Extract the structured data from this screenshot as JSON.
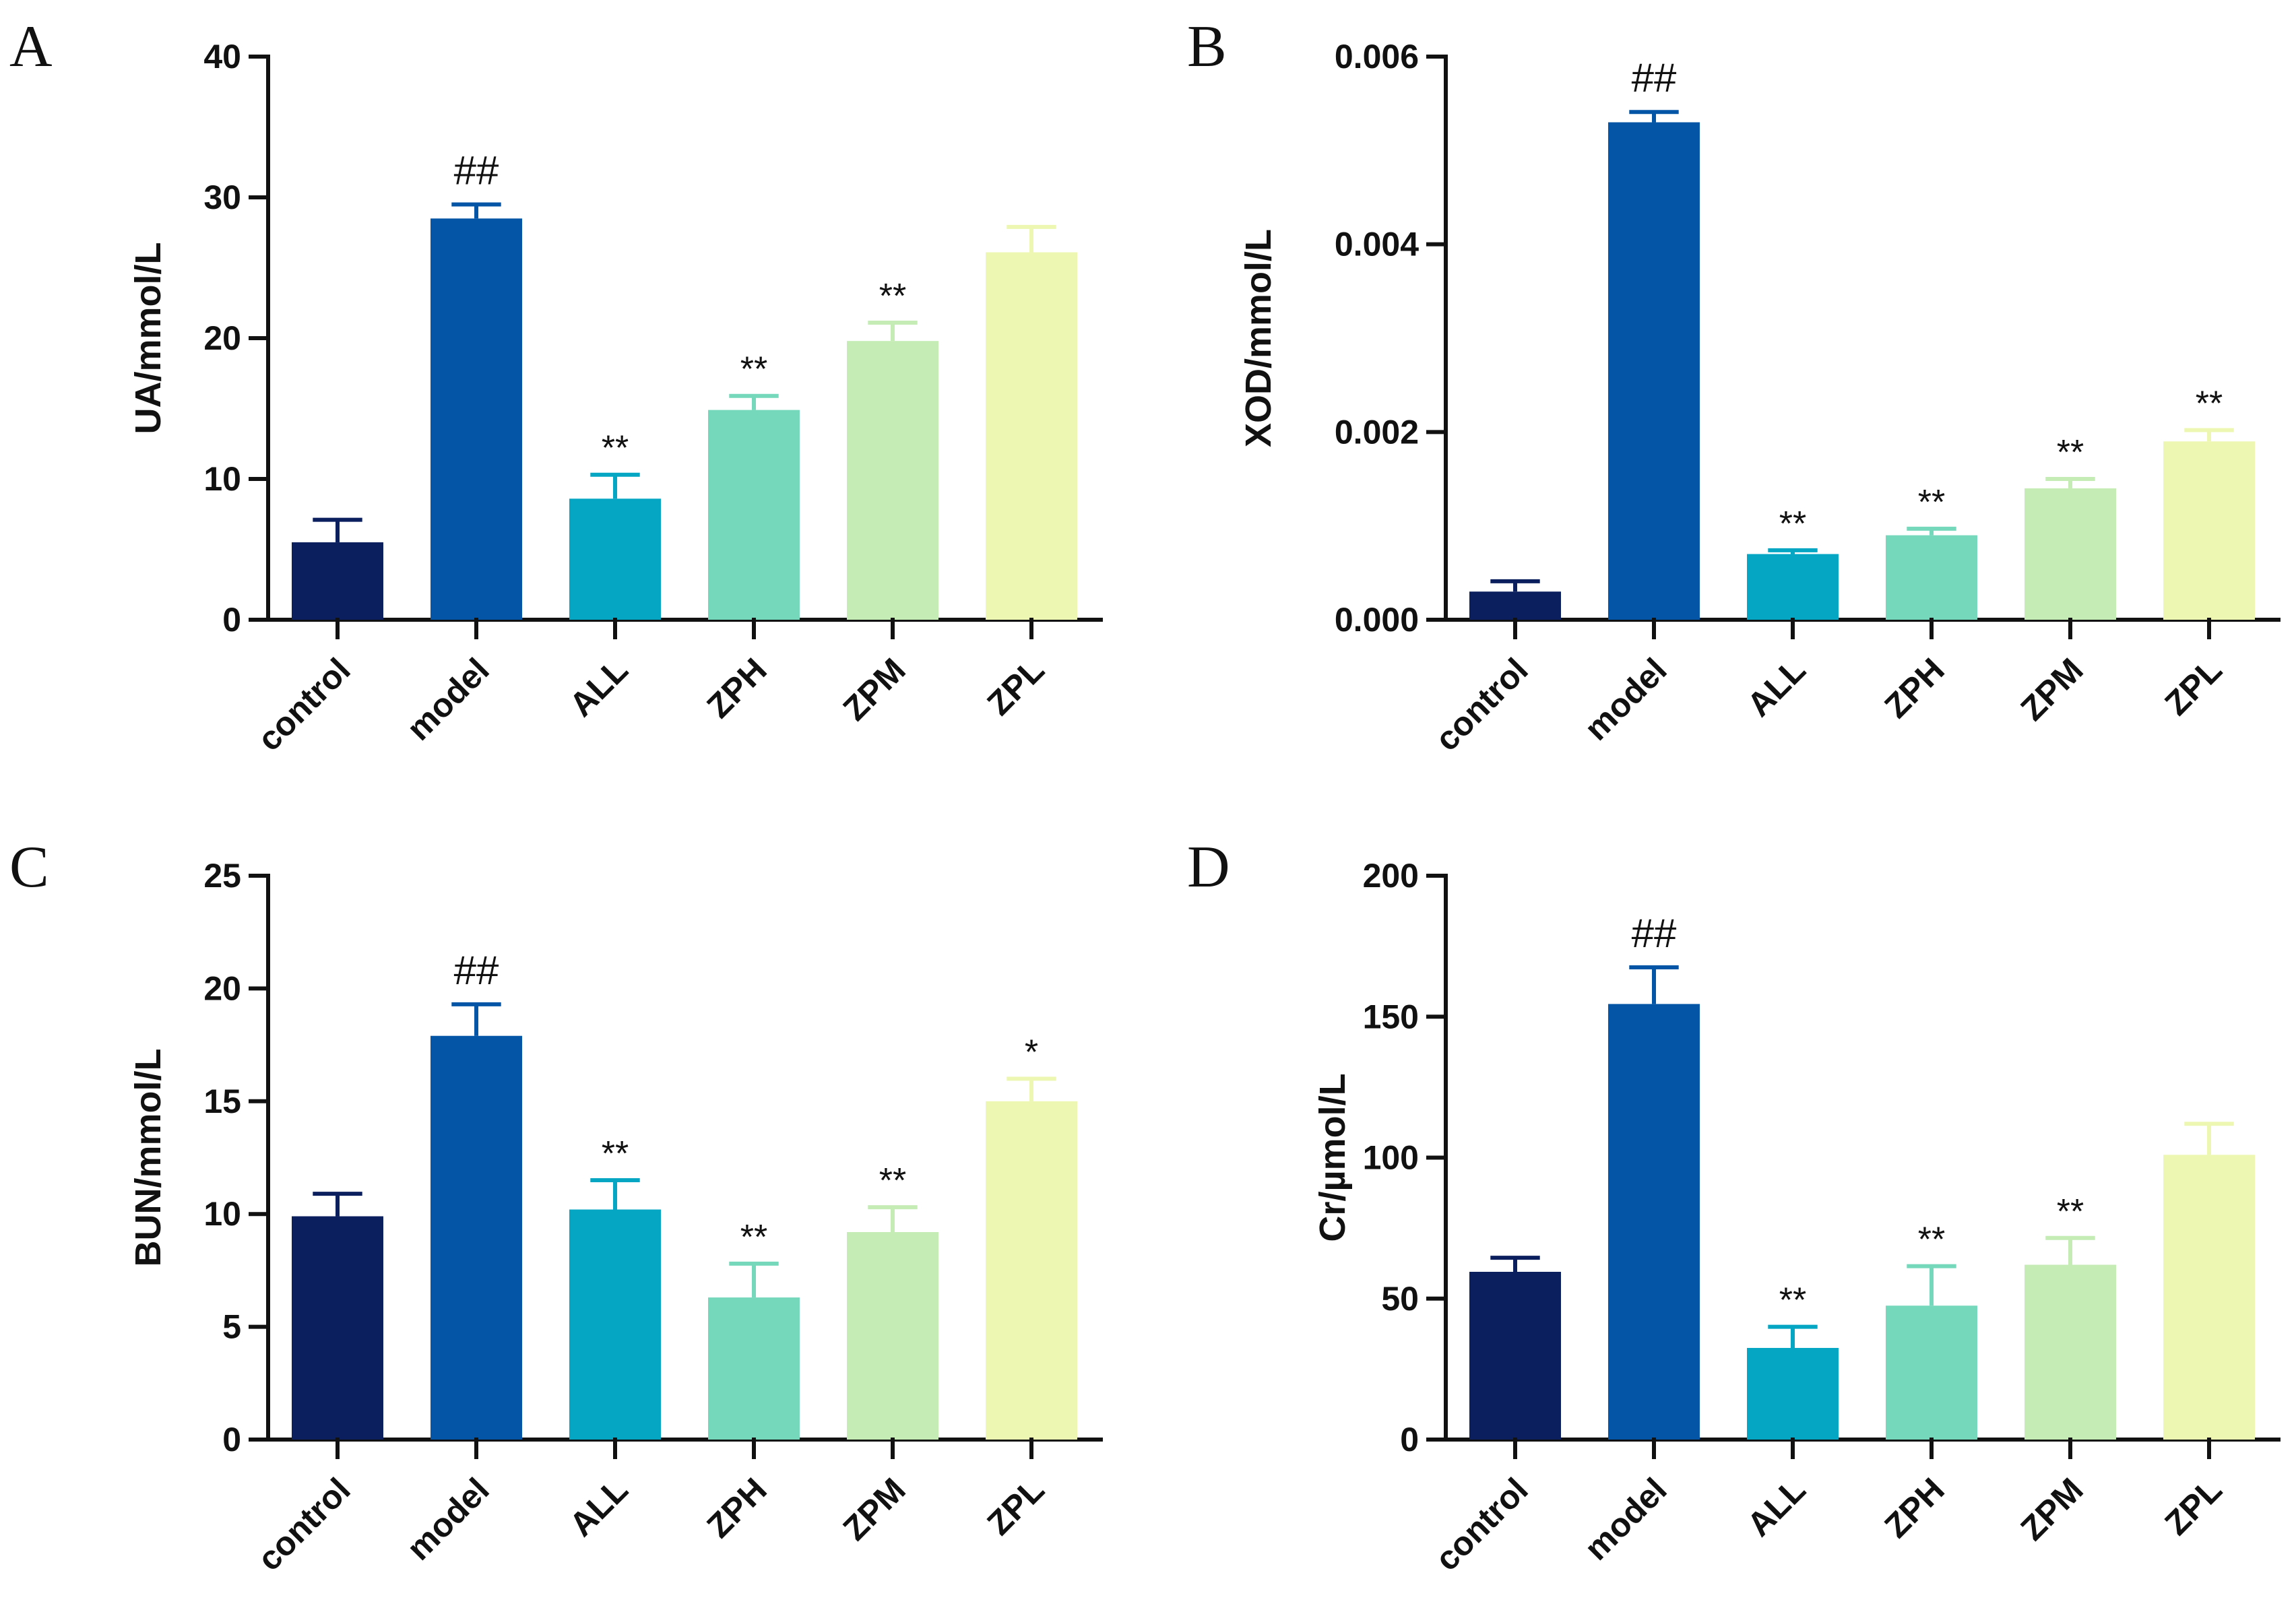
{
  "figure": {
    "colors": [
      "#0b1f5e",
      "#0455a6",
      "#05a6c4",
      "#76d8bb",
      "#c4ecb4",
      "#edf7b2"
    ]
  },
  "chart_data": [
    {
      "panel": "A",
      "type": "bar",
      "ylabel": "UA/mmol/L",
      "categories": [
        "control",
        "model",
        "ALL",
        "ZPH",
        "ZPM",
        "ZPL"
      ],
      "values": [
        5.5,
        28.5,
        8.6,
        14.9,
        19.8,
        26.1
      ],
      "errors": [
        1.6,
        1.0,
        1.7,
        1.0,
        1.3,
        1.8
      ],
      "annotations": [
        "",
        "##",
        "**",
        "**",
        "**",
        ""
      ],
      "ylim": [
        0,
        40
      ],
      "yticks": [
        0,
        10,
        20,
        30,
        40
      ],
      "ytick_labels": [
        "0",
        "10",
        "20",
        "30",
        "40"
      ]
    },
    {
      "panel": "B",
      "type": "bar",
      "ylabel": "XOD/mmol/L",
      "categories": [
        "control",
        "model",
        "ALL",
        "ZPH",
        "ZPM",
        "ZPL"
      ],
      "values": [
        0.0003,
        0.0053,
        0.0007,
        0.0009,
        0.0014,
        0.0019
      ],
      "errors": [
        0.00011,
        0.00011,
        4e-05,
        7e-05,
        0.0001,
        0.00012
      ],
      "annotations": [
        "",
        "##",
        "**",
        "**",
        "**",
        "**"
      ],
      "ylim": [
        0,
        0.006
      ],
      "yticks": [
        0,
        0.002,
        0.004,
        0.006
      ],
      "ytick_labels": [
        "0.000",
        "0.002",
        "0.004",
        "0.006"
      ]
    },
    {
      "panel": "C",
      "type": "bar",
      "ylabel": "BUN/mmol/L",
      "categories": [
        "control",
        "model",
        "ALL",
        "ZPH",
        "ZPM",
        "ZPL"
      ],
      "values": [
        9.9,
        17.9,
        10.2,
        6.3,
        9.2,
        15.0
      ],
      "errors": [
        1.0,
        1.4,
        1.3,
        1.5,
        1.1,
        1.0
      ],
      "annotations": [
        "",
        "##",
        "**",
        "**",
        "**",
        "*"
      ],
      "ylim": [
        0,
        25
      ],
      "yticks": [
        0,
        5,
        10,
        15,
        20,
        25
      ],
      "ytick_labels": [
        "0",
        "5",
        "10",
        "15",
        "20",
        "25"
      ]
    },
    {
      "panel": "D",
      "type": "bar",
      "ylabel": "Cr/µmol/L",
      "categories": [
        "control",
        "model",
        "ALL",
        "ZPH",
        "ZPM",
        "ZPL"
      ],
      "values": [
        59.5,
        154.5,
        32.5,
        47.5,
        62.0,
        101.0
      ],
      "errors": [
        5.0,
        13.0,
        7.5,
        14.0,
        9.5,
        11.0
      ],
      "annotations": [
        "",
        "##",
        "**",
        "**",
        "**",
        ""
      ],
      "ylim": [
        0,
        200
      ],
      "yticks": [
        0,
        50,
        100,
        150,
        200
      ],
      "ytick_labels": [
        "0",
        "50",
        "100",
        "150",
        "200"
      ]
    }
  ]
}
